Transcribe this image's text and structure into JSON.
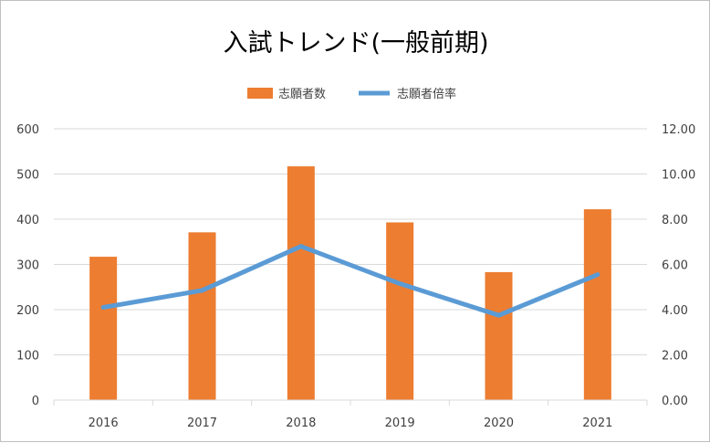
{
  "chart_data": {
    "type": "bar",
    "title": "入試トレンド(一般前期)",
    "categories": [
      "2016",
      "2017",
      "2018",
      "2019",
      "2020",
      "2021"
    ],
    "series": [
      {
        "name": "志願者数",
        "type": "bar",
        "axis": "left",
        "color": "#ED7D31",
        "values": [
          317,
          371,
          517,
          393,
          283,
          422
        ]
      },
      {
        "name": "志願者倍率",
        "type": "line",
        "axis": "right",
        "color": "#5B9BD5",
        "values": [
          4.1,
          4.85,
          6.8,
          5.15,
          3.75,
          5.55
        ]
      }
    ],
    "y_left": {
      "min": 0,
      "max": 600,
      "step": 100,
      "tick_labels": [
        "0",
        "100",
        "200",
        "300",
        "400",
        "500",
        "600"
      ]
    },
    "y_right": {
      "min": 0,
      "max": 12,
      "step": 2,
      "tick_labels": [
        "0.00",
        "2.00",
        "4.00",
        "6.00",
        "8.00",
        "10.00",
        "12.00"
      ]
    },
    "grid": true,
    "legend_position": "top"
  }
}
